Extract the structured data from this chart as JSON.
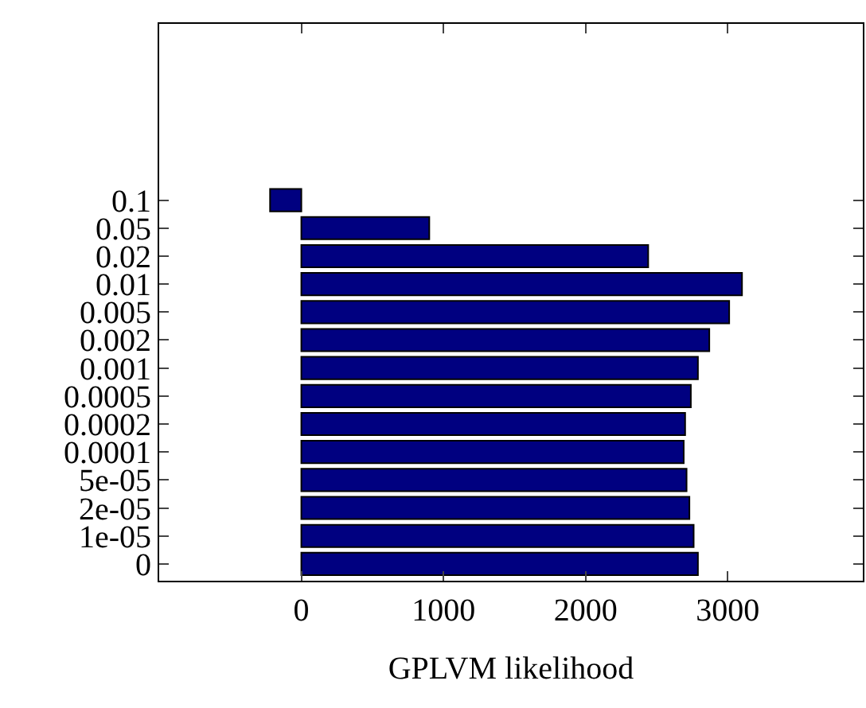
{
  "chart_data": {
    "type": "bar",
    "orientation": "horizontal",
    "xlabel": "GPLVM likelihood",
    "categories": [
      "0.1",
      "0.05",
      "0.02",
      "0.01",
      "0.005",
      "0.002",
      "0.001",
      "0.0005",
      "0.0002",
      "0.0001",
      "5e-05",
      "2e-05",
      "1e-05",
      "0"
    ],
    "values": [
      -220,
      900,
      2440,
      3100,
      3010,
      2870,
      2790,
      2740,
      2700,
      2690,
      2710,
      2730,
      2760,
      2790
    ],
    "color": "#000080",
    "xlim": [
      -1000,
      3950
    ],
    "xticks": [
      0,
      1000,
      2000,
      3000
    ],
    "grid": false
  }
}
